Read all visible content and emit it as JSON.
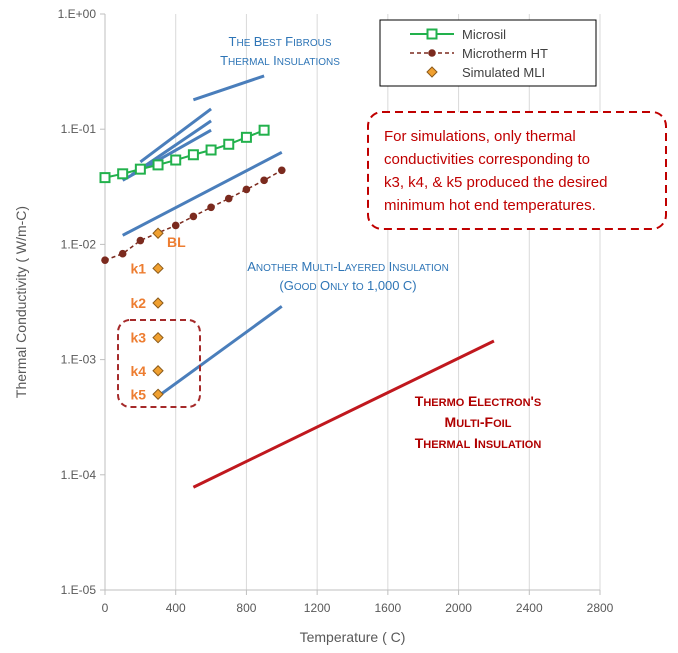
{
  "chart_data": {
    "type": "scatter",
    "xlabel": "Temperature ( C)",
    "ylabel": "Thermal Conductivity ( W/m-C)",
    "xlim": [
      0,
      2800
    ],
    "ylim": [
      1e-05,
      1
    ],
    "y_scale": "log",
    "grid": "vertical",
    "x_ticks": [
      "0",
      "400",
      "800",
      "1200",
      "1600",
      "2000",
      "2400",
      "2800"
    ],
    "y_ticks": [
      {
        "v": 1,
        "label": "1.E+00"
      },
      {
        "v": 0.1,
        "label": "1.E-01"
      },
      {
        "v": 0.01,
        "label": "1.E-02"
      },
      {
        "v": 0.001,
        "label": "1.E-03"
      },
      {
        "v": 0.0001,
        "label": "1.E-04"
      },
      {
        "v": 1e-05,
        "label": "1.E-05"
      }
    ],
    "legend_position": "top-right",
    "series": [
      {
        "name": "Microsil",
        "color": "#22B14C",
        "marker": "square",
        "x": [
          0,
          100,
          200,
          300,
          400,
          500,
          600,
          700,
          800,
          900
        ],
        "y": [
          0.038,
          0.041,
          0.045,
          0.049,
          0.054,
          0.06,
          0.066,
          0.074,
          0.085,
          0.098
        ]
      },
      {
        "name": "Microtherm HT",
        "color": "#7B2A1E",
        "marker": "circle",
        "x": [
          0,
          100,
          200,
          300,
          400,
          500,
          600,
          700,
          800,
          900,
          1000
        ],
        "y": [
          0.0073,
          0.0083,
          0.0108,
          0.0126,
          0.0146,
          0.0175,
          0.021,
          0.025,
          0.03,
          0.036,
          0.044
        ]
      },
      {
        "name": "Simulated MLI",
        "color": "#ED7D31",
        "marker": "diamond",
        "x": [
          300,
          300,
          300,
          300,
          300,
          300
        ],
        "y": [
          0.0125,
          0.0062,
          0.0031,
          0.00155,
          0.0008,
          0.0005
        ]
      }
    ],
    "lines": [
      {
        "color": "#4A7EBB",
        "x": [
          500,
          900
        ],
        "y": [
          0.18,
          0.29
        ]
      },
      {
        "color": "#4A7EBB",
        "x": [
          200,
          600
        ],
        "y": [
          0.052,
          0.15
        ]
      },
      {
        "color": "#4A7EBB",
        "x": [
          150,
          600
        ],
        "y": [
          0.04,
          0.118
        ]
      },
      {
        "color": "#4A7EBB",
        "x": [
          100,
          600
        ],
        "y": [
          0.036,
          0.098
        ]
      },
      {
        "color": "#4A7EBB",
        "x": [
          100,
          1000
        ],
        "y": [
          0.012,
          0.063
        ]
      },
      {
        "color": "#4A7EBB",
        "x": [
          300,
          1000
        ],
        "y": [
          0.00048,
          0.0029
        ]
      },
      {
        "color": "#C0181E",
        "x": [
          500,
          2200
        ],
        "y": [
          7.8e-05,
          0.00145
        ]
      }
    ],
    "point_labels": [
      {
        "text": "BL",
        "x": 300,
        "y": 0.0125
      },
      {
        "text": "k1",
        "x": 300,
        "y": 0.0062
      },
      {
        "text": "k2",
        "x": 300,
        "y": 0.0031
      },
      {
        "text": "k3",
        "x": 300,
        "y": 0.00155
      },
      {
        "text": "k4",
        "x": 300,
        "y": 0.0008
      },
      {
        "text": "k5",
        "x": 300,
        "y": 0.0005
      }
    ],
    "annotations": {
      "fibrous": [
        "The Best Fibrous",
        "Thermal Insulations"
      ],
      "mli": [
        "Another Multi-Layered Insulation",
        "(Good Only to 1,000 C)"
      ],
      "thermo": [
        "Thermo Electron's",
        "Multi-Foil",
        "Thermal Insulation"
      ],
      "callout": [
        "For simulations, only thermal",
        "conductivities corresponding to",
        "k3, k4, & k5 produced the desired",
        "minimum hot end temperatures."
      ]
    },
    "colors": {
      "fibrous_lines": "#4A7EBB",
      "thermo_line": "#C0181E",
      "callout_border": "#C00000",
      "k_box_border": "#A52A2A"
    }
  }
}
